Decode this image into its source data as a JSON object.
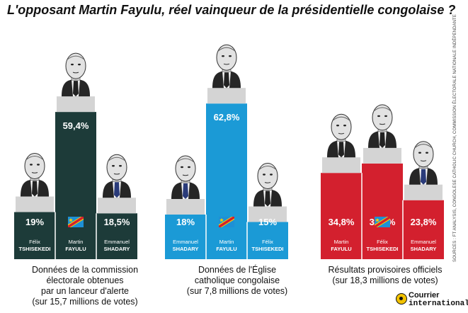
{
  "title": "L'opposant Martin Fayulu, réel vainqueur de la présidentielle congolaise ?",
  "source": "SOURCES : FT ANALYSIS, CONGOLESE CATHOLIC CHURCH, COMMISSION ÉLECTORALE NATIONALE INDÉPENDANTE",
  "brand": {
    "line1": "Courrier",
    "line2": "international"
  },
  "colors": {
    "panel1": "#1d3b39",
    "panel2": "#1b9ad6",
    "panel3": "#d3202e",
    "pedestal": "#d4d4d4",
    "bar_text": "#ffffff"
  },
  "chart_data": [
    {
      "type": "bar",
      "title": "",
      "caption": "Données de la commission électorale obtenues par un lanceur d'alerte (sur 15,7 millions de votes)",
      "caption_lines": [
        "Données de la commission",
        "électorale obtenues",
        "par un lanceur d'alerte",
        "(sur 15,7 millions de votes)"
      ],
      "categories": [
        "Félix TSHISEKEDI",
        "Martin FAYULU",
        "Emmanuel SHADARY"
      ],
      "first_names": [
        "Félix",
        "Martin",
        "Emmanuel"
      ],
      "last_names": [
        "TSHISEKEDI",
        "FAYULU",
        "SHADARY"
      ],
      "values": [
        19,
        59.4,
        18.5
      ],
      "labels": [
        "19%",
        "59,4%",
        "18,5%"
      ],
      "tie_colors": [
        "#222222",
        "#222222",
        "#2a3b7a"
      ],
      "flag_index": 1,
      "color": "#1d3b39",
      "xlabel": "",
      "ylabel": "",
      "ylim": [
        0,
        70
      ],
      "grid": false
    },
    {
      "type": "bar",
      "title": "",
      "caption": "Données de l'Église catholique congolaise (sur 7,8 millions de votes)",
      "caption_lines": [
        "Données de l'Église",
        "catholique congolaise",
        "(sur 7,8 millions de votes)"
      ],
      "categories": [
        "Emmanuel SHADARY",
        "Martin FAYULU",
        "Félix TSHISEKEDI"
      ],
      "first_names": [
        "Emmanuel",
        "Martin",
        "Félix"
      ],
      "last_names": [
        "SHADARY",
        "FAYULU",
        "TSHISEKEDI"
      ],
      "values": [
        18,
        62.8,
        15
      ],
      "labels": [
        "18%",
        "62,8%",
        "15%"
      ],
      "tie_colors": [
        "#2a3b7a",
        "#222222",
        "#222222"
      ],
      "flag_index": 1,
      "color": "#1b9ad6",
      "xlabel": "",
      "ylabel": "",
      "ylim": [
        0,
        70
      ],
      "grid": false
    },
    {
      "type": "bar",
      "title": "",
      "caption": "Résultats provisoires officiels (sur 18,3 millions de votes)",
      "caption_lines": [
        "Résultats provisoires officiels",
        "(sur 18,3 millions de votes)"
      ],
      "categories": [
        "Martin FAYULU",
        "Félix TSHISEKEDI",
        "Emmanuel SHADARY"
      ],
      "first_names": [
        "Martin",
        "Félix",
        "Emmanuel"
      ],
      "last_names": [
        "FAYULU",
        "TSHISEKEDI",
        "SHADARY"
      ],
      "values": [
        34.8,
        38.6,
        23.8
      ],
      "labels": [
        "34,8%",
        "38,6%",
        "23,8%"
      ],
      "tie_colors": [
        "#222222",
        "#222222",
        "#2a3b7a"
      ],
      "flag_index": 1,
      "color": "#d3202e",
      "xlabel": "",
      "ylabel": "",
      "ylim": [
        0,
        70
      ],
      "grid": false
    }
  ]
}
